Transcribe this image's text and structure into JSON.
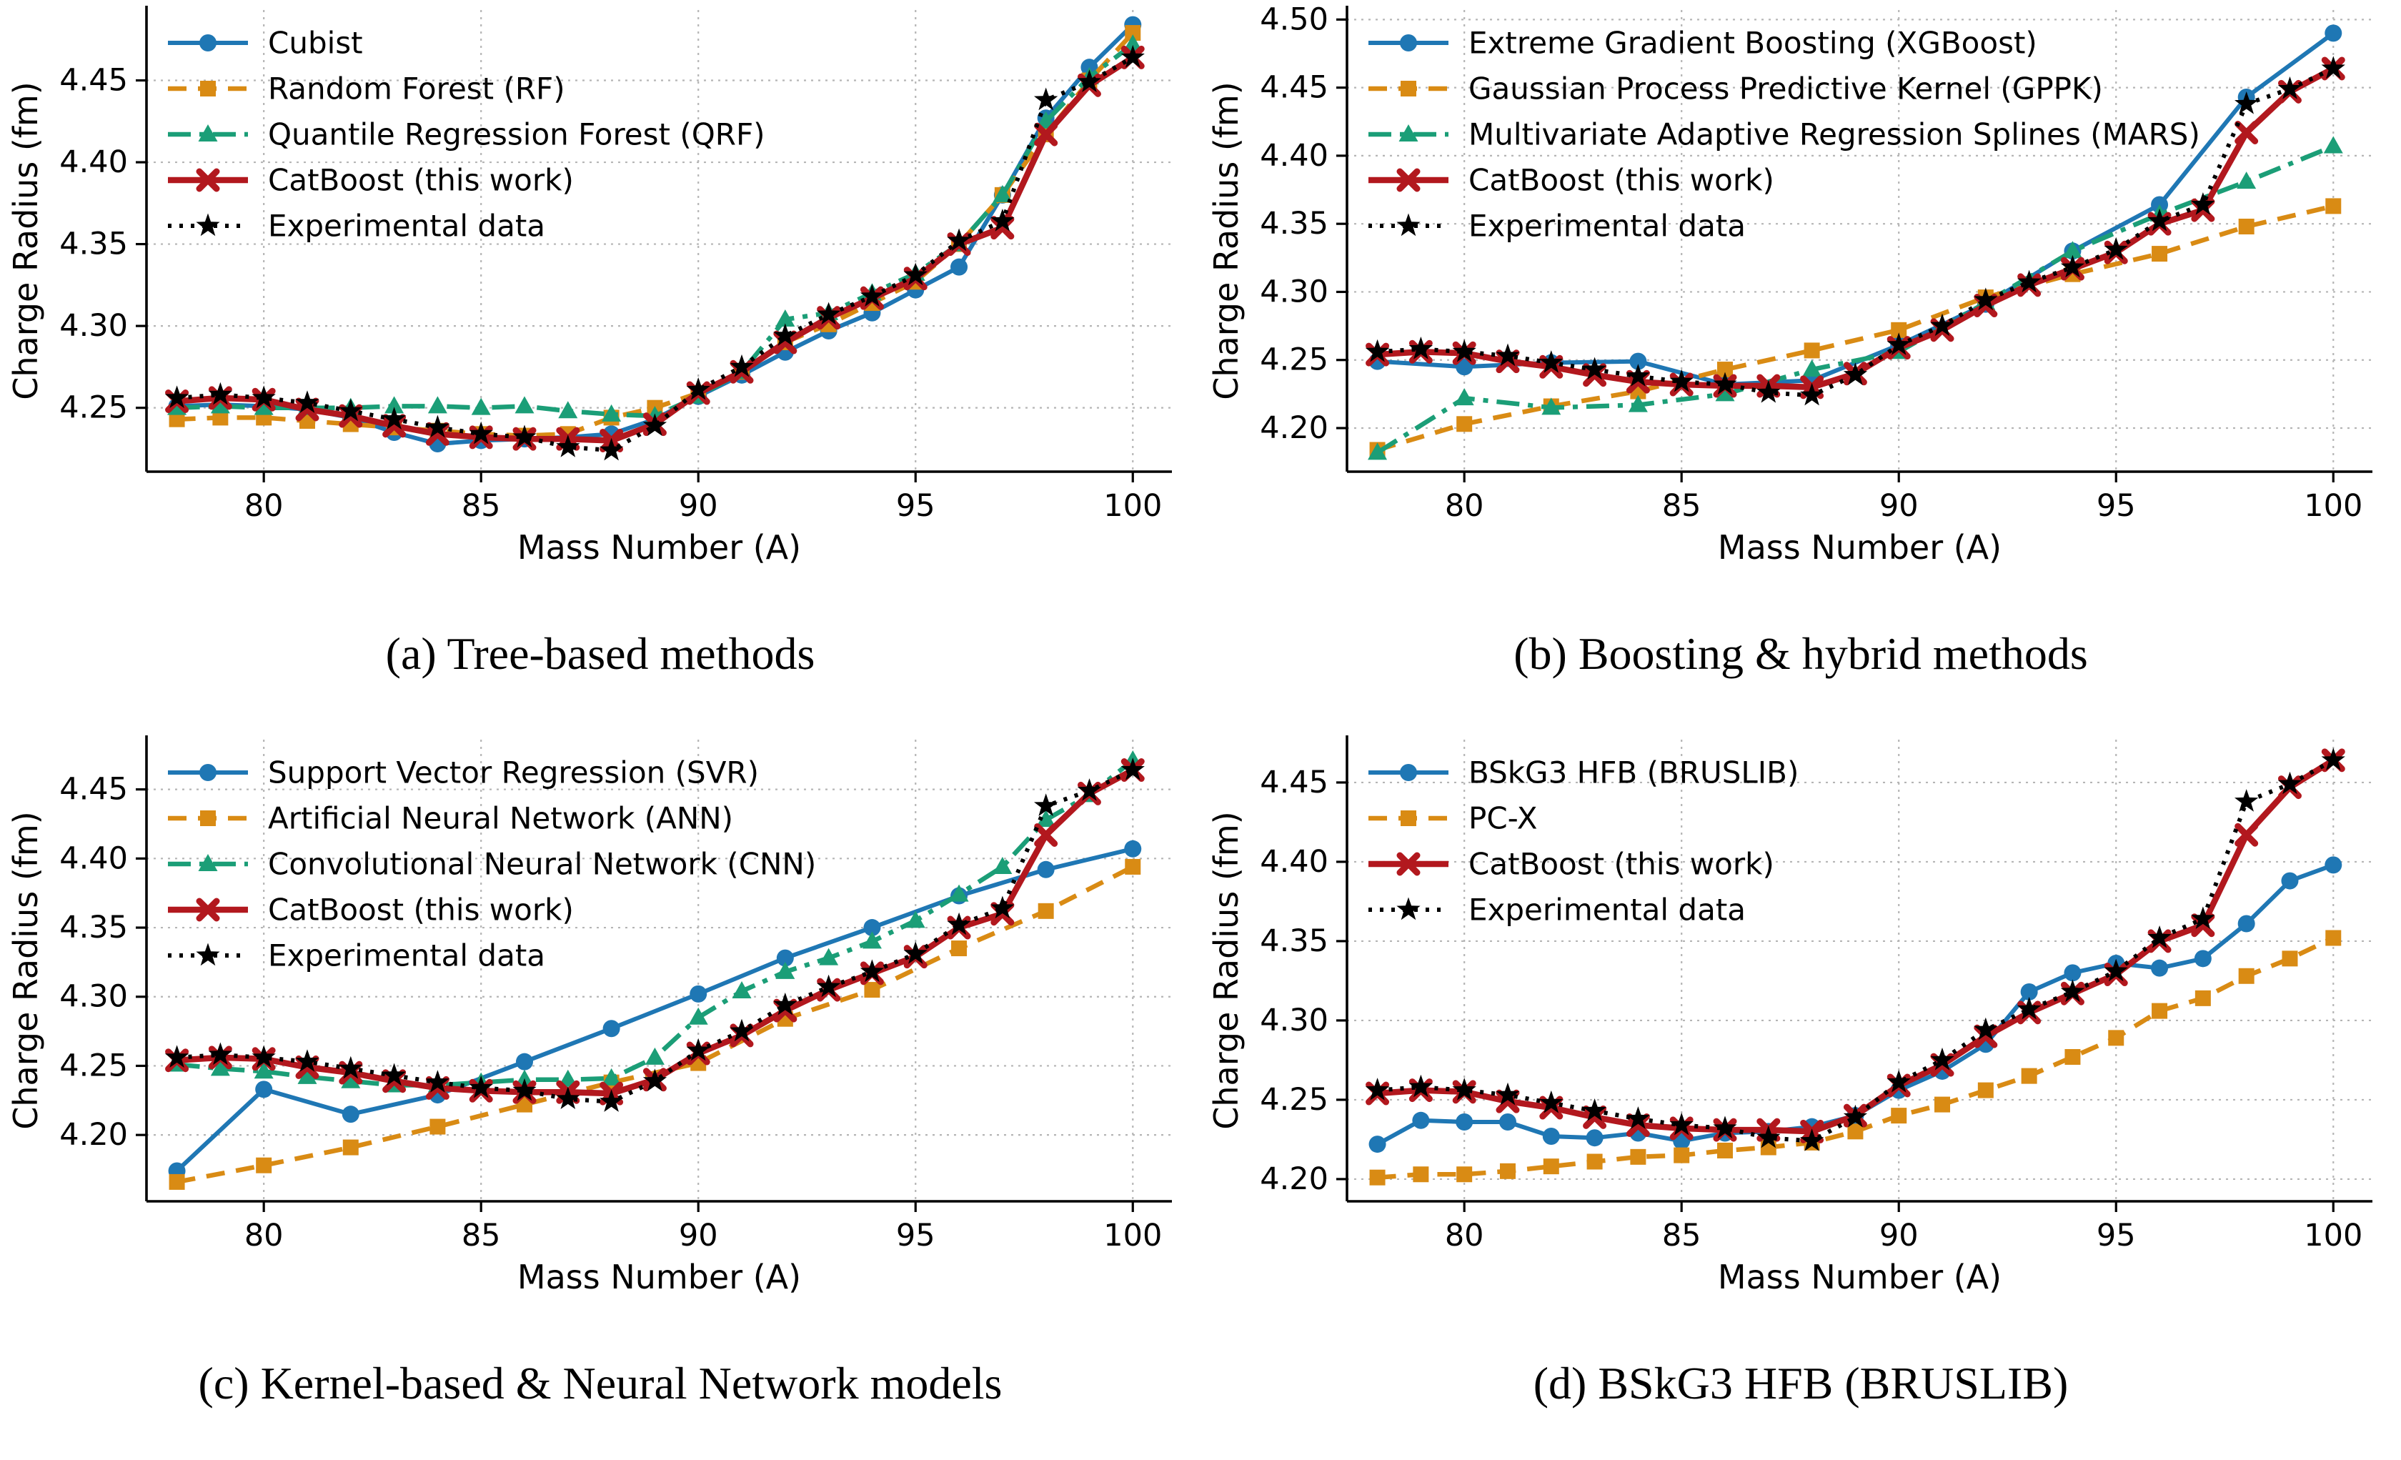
{
  "figure": {
    "background": "#ffffff",
    "grid_color": "#b5b5b5",
    "spine_color": "#000000",
    "text_color": "#000000"
  },
  "palette": {
    "blue": "#1f77b4",
    "orange": "#d98b14",
    "green": "#1b9e77",
    "red": "#b2181e",
    "black": "#000000"
  },
  "chart_data": [
    {
      "id": "a",
      "type": "line",
      "caption": "(a) Tree-based methods",
      "xlabel": "Mass Number (A)",
      "ylabel": "Charge Radius (fm)",
      "xlim": [
        77.3,
        100.9
      ],
      "ylim": [
        4.211,
        4.493
      ],
      "xticks": [
        80,
        85,
        90,
        95,
        100
      ],
      "yticks": [
        4.25,
        4.3,
        4.35,
        4.4,
        4.45
      ],
      "grid": true,
      "legend_position": "upper-left",
      "series": [
        {
          "name": "Cubist",
          "color": "blue",
          "linestyle": "solid",
          "marker": "circle",
          "x": [
            78,
            79,
            80,
            81,
            82,
            83,
            84,
            85,
            86,
            87,
            88,
            89,
            90,
            91,
            92,
            93,
            94,
            95,
            96,
            97,
            98,
            99,
            100
          ],
          "y": [
            4.251,
            4.252,
            4.251,
            4.249,
            4.244,
            4.235,
            4.228,
            4.23,
            4.231,
            4.232,
            4.234,
            4.243,
            4.257,
            4.27,
            4.284,
            4.297,
            4.308,
            4.322,
            4.336,
            4.38,
            4.427,
            4.458,
            4.484
          ]
        },
        {
          "name": "Random Forest (RF)",
          "color": "orange",
          "linestyle": "dashed",
          "marker": "square",
          "x": [
            78,
            79,
            80,
            81,
            82,
            83,
            84,
            85,
            86,
            87,
            88,
            89,
            90,
            91,
            92,
            93,
            94,
            95,
            96,
            97,
            98,
            99,
            100
          ],
          "y": [
            4.243,
            4.244,
            4.244,
            4.242,
            4.24,
            4.238,
            4.236,
            4.234,
            4.233,
            4.234,
            4.244,
            4.25,
            4.259,
            4.272,
            4.29,
            4.301,
            4.314,
            4.327,
            4.35,
            4.38,
            4.417,
            4.45,
            4.479
          ]
        },
        {
          "name": "Quantile Regression Forest (QRF)",
          "color": "green",
          "linestyle": "dashdot",
          "marker": "triangle",
          "x": [
            78,
            79,
            80,
            81,
            82,
            83,
            84,
            85,
            86,
            87,
            88,
            89,
            90,
            91,
            92,
            93,
            94,
            95,
            96,
            97,
            98,
            99,
            100
          ],
          "y": [
            4.25,
            4.251,
            4.25,
            4.25,
            4.25,
            4.251,
            4.251,
            4.25,
            4.251,
            4.248,
            4.246,
            4.245,
            4.257,
            4.272,
            4.304,
            4.308,
            4.32,
            4.332,
            4.35,
            4.38,
            4.425,
            4.452,
            4.472
          ]
        },
        {
          "name": "CatBoost (this work)",
          "color": "red",
          "linestyle": "solid-thick",
          "marker": "xmark",
          "x": [
            78,
            79,
            80,
            81,
            82,
            83,
            84,
            85,
            86,
            87,
            88,
            89,
            90,
            91,
            92,
            93,
            94,
            95,
            96,
            97,
            98,
            99,
            100
          ],
          "y": [
            4.254,
            4.256,
            4.255,
            4.249,
            4.245,
            4.239,
            4.234,
            4.232,
            4.231,
            4.231,
            4.23,
            4.24,
            4.259,
            4.272,
            4.29,
            4.305,
            4.317,
            4.329,
            4.35,
            4.36,
            4.417,
            4.447,
            4.464
          ]
        },
        {
          "name": "Experimental data",
          "color": "black",
          "linestyle": "dotted",
          "marker": "star",
          "x": [
            78,
            79,
            80,
            81,
            82,
            83,
            84,
            85,
            86,
            87,
            88,
            89,
            90,
            91,
            92,
            93,
            94,
            95,
            96,
            97,
            98,
            99,
            100
          ],
          "y": [
            4.256,
            4.258,
            4.256,
            4.253,
            4.248,
            4.243,
            4.238,
            4.234,
            4.232,
            4.226,
            4.224,
            4.239,
            4.261,
            4.275,
            4.294,
            4.307,
            4.318,
            4.331,
            4.352,
            4.364,
            4.438,
            4.449,
            4.464
          ]
        }
      ]
    },
    {
      "id": "b",
      "type": "line",
      "caption": "(b) Boosting & hybrid methods",
      "xlabel": "Mass Number (A)",
      "ylabel": "Charge Radius (fm)",
      "xlim": [
        77.3,
        100.9
      ],
      "ylim": [
        4.168,
        4.507
      ],
      "xticks": [
        80,
        85,
        90,
        95,
        100
      ],
      "yticks": [
        4.2,
        4.25,
        4.3,
        4.35,
        4.4,
        4.45,
        4.5
      ],
      "grid": true,
      "legend_position": "upper-left",
      "series": [
        {
          "name": "Extreme Gradient Boosting (XGBoost)",
          "color": "blue",
          "linestyle": "solid",
          "marker": "circle",
          "x": [
            78,
            80,
            82,
            84,
            86,
            88,
            90,
            92,
            94,
            96,
            98,
            100
          ],
          "y": [
            4.249,
            4.245,
            4.248,
            4.249,
            4.232,
            4.235,
            4.261,
            4.291,
            4.33,
            4.364,
            4.443,
            4.49
          ]
        },
        {
          "name": "Gaussian Process Predictive Kernel (GPPK)",
          "color": "orange",
          "linestyle": "dashed",
          "marker": "square",
          "x": [
            78,
            80,
            82,
            84,
            86,
            88,
            90,
            92,
            94,
            96,
            98,
            100
          ],
          "y": [
            4.184,
            4.203,
            4.216,
            4.227,
            4.243,
            4.257,
            4.272,
            4.296,
            4.313,
            4.328,
            4.348,
            4.363
          ]
        },
        {
          "name": "Multivariate Adaptive Regression Splines (MARS)",
          "color": "green",
          "linestyle": "dashdot",
          "marker": "triangle",
          "x": [
            78,
            80,
            82,
            84,
            86,
            88,
            90,
            92,
            94,
            96,
            98,
            100
          ],
          "y": [
            4.182,
            4.222,
            4.215,
            4.217,
            4.225,
            4.243,
            4.256,
            4.292,
            4.33,
            4.357,
            4.381,
            4.407
          ]
        },
        {
          "name": "CatBoost (this work)",
          "color": "red",
          "linestyle": "solid-thick",
          "marker": "xmark",
          "x": [
            78,
            79,
            80,
            81,
            82,
            83,
            84,
            85,
            86,
            87,
            88,
            89,
            90,
            91,
            92,
            93,
            94,
            95,
            96,
            97,
            98,
            99,
            100
          ],
          "y": [
            4.254,
            4.256,
            4.255,
            4.249,
            4.245,
            4.239,
            4.234,
            4.232,
            4.231,
            4.231,
            4.23,
            4.24,
            4.259,
            4.272,
            4.29,
            4.305,
            4.317,
            4.329,
            4.35,
            4.36,
            4.417,
            4.447,
            4.464
          ]
        },
        {
          "name": "Experimental data",
          "color": "black",
          "linestyle": "dotted",
          "marker": "star",
          "x": [
            78,
            79,
            80,
            81,
            82,
            83,
            84,
            85,
            86,
            87,
            88,
            89,
            90,
            91,
            92,
            93,
            94,
            95,
            96,
            97,
            98,
            99,
            100
          ],
          "y": [
            4.256,
            4.258,
            4.256,
            4.253,
            4.248,
            4.243,
            4.238,
            4.234,
            4.232,
            4.226,
            4.224,
            4.239,
            4.261,
            4.275,
            4.294,
            4.307,
            4.318,
            4.331,
            4.352,
            4.364,
            4.438,
            4.449,
            4.464
          ]
        }
      ]
    },
    {
      "id": "c",
      "type": "line",
      "caption": "(c) Kernel-based & Neural Network models",
      "xlabel": "Mass Number (A)",
      "ylabel": "Charge Radius (fm)",
      "xlim": [
        77.3,
        100.9
      ],
      "ylim": [
        4.152,
        4.486
      ],
      "xticks": [
        80,
        85,
        90,
        95,
        100
      ],
      "yticks": [
        4.2,
        4.25,
        4.3,
        4.35,
        4.4,
        4.45
      ],
      "grid": true,
      "legend_position": "upper-left",
      "series": [
        {
          "name": "Support Vector Regression (SVR)",
          "color": "blue",
          "linestyle": "solid",
          "marker": "circle",
          "x": [
            78,
            80,
            82,
            84,
            86,
            88,
            90,
            92,
            94,
            96,
            98,
            100
          ],
          "y": [
            4.174,
            4.233,
            4.215,
            4.229,
            4.253,
            4.277,
            4.302,
            4.328,
            4.35,
            4.373,
            4.392,
            4.407
          ]
        },
        {
          "name": "Artificial Neural Network (ANN)",
          "color": "orange",
          "linestyle": "dashed",
          "marker": "square",
          "x": [
            78,
            80,
            82,
            84,
            86,
            88,
            90,
            92,
            94,
            96,
            98,
            100
          ],
          "y": [
            4.166,
            4.178,
            4.191,
            4.206,
            4.222,
            4.238,
            4.252,
            4.284,
            4.305,
            4.335,
            4.362,
            4.394
          ]
        },
        {
          "name": "Convolutional Neural Network (CNN)",
          "color": "green",
          "linestyle": "dashdot",
          "marker": "triangle",
          "x": [
            78,
            79,
            80,
            81,
            82,
            83,
            84,
            85,
            86,
            87,
            88,
            89,
            90,
            91,
            92,
            93,
            94,
            95,
            96,
            97,
            98,
            99,
            100
          ],
          "y": [
            4.251,
            4.248,
            4.246,
            4.242,
            4.239,
            4.236,
            4.236,
            4.238,
            4.24,
            4.24,
            4.241,
            4.256,
            4.285,
            4.304,
            4.318,
            4.328,
            4.34,
            4.355,
            4.374,
            4.394,
            4.428,
            4.446,
            4.471
          ]
        },
        {
          "name": "CatBoost (this work)",
          "color": "red",
          "linestyle": "solid-thick",
          "marker": "xmark",
          "x": [
            78,
            79,
            80,
            81,
            82,
            83,
            84,
            85,
            86,
            87,
            88,
            89,
            90,
            91,
            92,
            93,
            94,
            95,
            96,
            97,
            98,
            99,
            100
          ],
          "y": [
            4.254,
            4.256,
            4.255,
            4.249,
            4.245,
            4.239,
            4.234,
            4.232,
            4.231,
            4.231,
            4.23,
            4.24,
            4.259,
            4.272,
            4.29,
            4.305,
            4.317,
            4.329,
            4.35,
            4.36,
            4.417,
            4.447,
            4.464
          ]
        },
        {
          "name": "Experimental data",
          "color": "black",
          "linestyle": "dotted",
          "marker": "star",
          "x": [
            78,
            79,
            80,
            81,
            82,
            83,
            84,
            85,
            86,
            87,
            88,
            89,
            90,
            91,
            92,
            93,
            94,
            95,
            96,
            97,
            98,
            99,
            100
          ],
          "y": [
            4.256,
            4.258,
            4.256,
            4.253,
            4.248,
            4.243,
            4.238,
            4.234,
            4.232,
            4.226,
            4.224,
            4.239,
            4.261,
            4.275,
            4.294,
            4.307,
            4.318,
            4.331,
            4.352,
            4.364,
            4.438,
            4.449,
            4.464
          ]
        }
      ]
    },
    {
      "id": "d",
      "type": "line",
      "caption": "(d) BSkG3 HFB (BRUSLIB)",
      "xlabel": "Mass Number (A)",
      "ylabel": "Charge Radius (fm)",
      "xlim": [
        77.3,
        100.9
      ],
      "ylim": [
        4.186,
        4.477
      ],
      "xticks": [
        80,
        85,
        90,
        95,
        100
      ],
      "yticks": [
        4.2,
        4.25,
        4.3,
        4.35,
        4.4,
        4.45
      ],
      "grid": true,
      "legend_position": "upper-left",
      "series": [
        {
          "name": "BSkG3 HFB (BRUSLIB)",
          "color": "blue",
          "linestyle": "solid",
          "marker": "circle",
          "x": [
            78,
            79,
            80,
            81,
            82,
            83,
            84,
            85,
            86,
            87,
            88,
            89,
            90,
            91,
            92,
            93,
            94,
            95,
            96,
            97,
            98,
            99,
            100
          ],
          "y": [
            4.222,
            4.237,
            4.236,
            4.236,
            4.227,
            4.226,
            4.229,
            4.224,
            4.229,
            4.23,
            4.233,
            4.24,
            4.256,
            4.268,
            4.285,
            4.318,
            4.33,
            4.336,
            4.333,
            4.339,
            4.361,
            4.388,
            4.398
          ]
        },
        {
          "name": "PC-X",
          "color": "orange",
          "linestyle": "dashed",
          "marker": "square",
          "x": [
            78,
            79,
            80,
            81,
            82,
            83,
            84,
            85,
            86,
            87,
            88,
            89,
            90,
            91,
            92,
            93,
            94,
            95,
            96,
            97,
            98,
            99,
            100
          ],
          "y": [
            4.201,
            4.203,
            4.203,
            4.205,
            4.208,
            4.211,
            4.214,
            4.215,
            4.218,
            4.22,
            4.223,
            4.23,
            4.24,
            4.247,
            4.256,
            4.265,
            4.277,
            4.289,
            4.306,
            4.314,
            4.328,
            4.339,
            4.352
          ]
        },
        {
          "name": "CatBoost (this work)",
          "color": "red",
          "linestyle": "solid-thick",
          "marker": "xmark",
          "x": [
            78,
            79,
            80,
            81,
            82,
            83,
            84,
            85,
            86,
            87,
            88,
            89,
            90,
            91,
            92,
            93,
            94,
            95,
            96,
            97,
            98,
            99,
            100
          ],
          "y": [
            4.254,
            4.256,
            4.255,
            4.249,
            4.245,
            4.239,
            4.234,
            4.232,
            4.231,
            4.231,
            4.23,
            4.24,
            4.259,
            4.272,
            4.29,
            4.305,
            4.317,
            4.329,
            4.35,
            4.36,
            4.417,
            4.447,
            4.464
          ]
        },
        {
          "name": "Experimental data",
          "color": "black",
          "linestyle": "dotted",
          "marker": "star",
          "x": [
            78,
            79,
            80,
            81,
            82,
            83,
            84,
            85,
            86,
            87,
            88,
            89,
            90,
            91,
            92,
            93,
            94,
            95,
            96,
            97,
            98,
            99,
            100
          ],
          "y": [
            4.256,
            4.258,
            4.256,
            4.253,
            4.248,
            4.243,
            4.238,
            4.234,
            4.232,
            4.226,
            4.224,
            4.239,
            4.261,
            4.275,
            4.294,
            4.307,
            4.318,
            4.331,
            4.352,
            4.364,
            4.438,
            4.449,
            4.464
          ]
        }
      ]
    }
  ]
}
